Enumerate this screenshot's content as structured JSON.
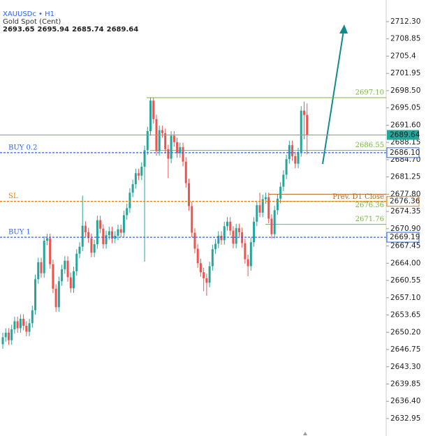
{
  "chart_data": {
    "type": "candlestick",
    "title": "XAUUSDc • H1",
    "subtitle": "Gold Spot (Cent)",
    "ohlc_values": [
      2693.65,
      2695.94,
      2685.74,
      2689.64
    ],
    "up_color": "#26a69a",
    "down_color": "#ef5350",
    "ylim": [
      2629.46,
      2716.62
    ],
    "yticks": [
      {
        "value": 2712.3,
        "label": "2712.30"
      },
      2708.85,
      2705.4,
      2701.95,
      {
        "value": 2698.5,
        "label": "2698.50"
      },
      2695.05,
      {
        "value": 2691.6,
        "label": "2691.60"
      },
      2688.15,
      {
        "value": 2684.7,
        "label": "2684.70"
      },
      2681.25,
      {
        "value": 2677.8,
        "label": "2677.80"
      },
      2674.35,
      {
        "value": 2670.9,
        "label": "2670.90"
      },
      2667.45,
      {
        "value": 2664,
        "label": "2664.00"
      },
      2660.55,
      {
        "value": 2657.1,
        "label": "2657.10"
      },
      2653.65,
      {
        "value": 2650.2,
        "label": "2650.20"
      },
      2646.75,
      {
        "value": 2643.3,
        "label": "2643.30"
      },
      2639.85,
      {
        "value": 2636.4,
        "label": "2636.40"
      },
      2632.95
    ],
    "open": [
      2647.8,
      2649.2,
      2650.1,
      2648.6,
      2650.8,
      2652.4,
      2651.0,
      2652.9,
      2651.5,
      2650.3,
      2652.0,
      2654.6,
      2660.8,
      2664.2,
      2662.0,
      2668.5,
      2669.0,
      2663.8,
      2658.9,
      2655.2,
      2660.4,
      2662.8,
      2664.5,
      2661.2,
      2659.0,
      2662.4,
      2665.9,
      2667.3,
      2671.5,
      2670.2,
      2669.0,
      2666.1,
      2667.8,
      2672.6,
      2670.9,
      2667.8,
      2669.6,
      2670.4,
      2668.9,
      2669.5,
      2670.8,
      2670.1,
      2673.6,
      2675.0,
      2678.1,
      2679.8,
      2682.0,
      2681.5,
      2683.3,
      2686.6,
      2690.4,
      2696.5,
      2692.8,
      2686.4,
      2690.6,
      2690.0,
      2686.8,
      2684.9,
      2689.5,
      2688.2,
      2686.0,
      2687.2,
      2684.3,
      2680.0,
      2675.4,
      2670.1,
      2666.9,
      2664.0,
      2662.2,
      2661.0,
      2660.1,
      2663.4,
      2666.8,
      2667.9,
      2669.5,
      2668.6,
      2671.4,
      2672.3,
      2670.5,
      2667.9,
      2671.0,
      2670.2,
      2668.0,
      2664.8,
      2663.4,
      2668.2,
      2672.3,
      2675.6,
      2674.1,
      2676.8,
      2677.2,
      2672.9,
      2669.8,
      2674.6,
      2676.9,
      2679.3,
      2681.7,
      2684.8,
      2687.6,
      2685.4,
      2683.9,
      2686.2,
      2694.5,
      2693.65
    ],
    "high": [
      2650.1,
      2651.0,
      2651.0,
      2651.7,
      2653.3,
      2653.3,
      2653.8,
      2653.8,
      2652.4,
      2652.9,
      2655.5,
      2661.7,
      2665.1,
      2665.1,
      2669.4,
      2669.9,
      2669.9,
      2664.7,
      2659.8,
      2661.3,
      2663.7,
      2665.4,
      2665.4,
      2662.1,
      2663.3,
      2666.8,
      2668.2,
      2677.5,
      2672.4,
      2671.1,
      2669.9,
      2668.7,
      2673.5,
      2673.5,
      2671.8,
      2670.5,
      2671.3,
      2671.3,
      2670.4,
      2671.7,
      2671.7,
      2674.5,
      2675.9,
      2679.0,
      2680.7,
      2682.9,
      2682.9,
      2684.2,
      2687.5,
      2691.3,
      2697.1,
      2697.1,
      2693.7,
      2691.5,
      2691.5,
      2690.9,
      2687.7,
      2690.4,
      2690.4,
      2689.1,
      2688.1,
      2688.1,
      2685.2,
      2680.9,
      2676.3,
      2671.0,
      2667.8,
      2664.9,
      2663.1,
      2661.9,
      2664.3,
      2667.7,
      2668.8,
      2670.4,
      2670.4,
      2672.3,
      2673.2,
      2673.2,
      2671.4,
      2671.9,
      2671.9,
      2671.1,
      2668.9,
      2665.7,
      2669.1,
      2673.2,
      2676.5,
      2678.1,
      2677.7,
      2678.1,
      2678.1,
      2673.8,
      2675.5,
      2677.8,
      2680.2,
      2682.6,
      2685.7,
      2688.5,
      2688.5,
      2686.3,
      2687.1,
      2695.4,
      2696.3,
      2695.94
    ],
    "low": [
      2646.9,
      2648.3,
      2647.7,
      2647.7,
      2649.9,
      2650.1,
      2650.1,
      2650.6,
      2649.4,
      2649.4,
      2651.1,
      2653.7,
      2659.9,
      2661.1,
      2661.1,
      2667.6,
      2662.9,
      2658.0,
      2654.3,
      2654.3,
      2659.5,
      2661.9,
      2660.3,
      2658.1,
      2658.1,
      2661.5,
      2665.0,
      2666.4,
      2669.3,
      2668.1,
      2665.2,
      2665.2,
      2666.9,
      2670.0,
      2666.9,
      2666.9,
      2668.7,
      2668.0,
      2668.0,
      2668.6,
      2669.2,
      2669.2,
      2672.7,
      2674.1,
      2677.2,
      2678.9,
      2680.6,
      2680.6,
      2664.3,
      2685.7,
      2689.5,
      2691.9,
      2685.5,
      2685.5,
      2689.1,
      2685.9,
      2681.0,
      2684.0,
      2687.3,
      2685.1,
      2685.1,
      2683.4,
      2679.1,
      2674.5,
      2669.2,
      2666.0,
      2663.1,
      2661.3,
      2658.4,
      2657.5,
      2659.2,
      2662.5,
      2665.9,
      2667.0,
      2667.7,
      2667.7,
      2670.5,
      2669.6,
      2667.0,
      2667.0,
      2669.3,
      2667.1,
      2663.9,
      2661.4,
      2662.5,
      2667.3,
      2671.4,
      2673.2,
      2673.2,
      2675.9,
      2672.0,
      2668.9,
      2668.9,
      2673.7,
      2676.0,
      2678.4,
      2680.8,
      2683.9,
      2684.5,
      2683.0,
      2683.0,
      2685.3,
      2688.8,
      2685.74
    ],
    "close": [
      2649.2,
      2650.1,
      2648.6,
      2650.8,
      2652.4,
      2651.0,
      2652.9,
      2651.5,
      2650.3,
      2652.0,
      2654.6,
      2660.8,
      2664.2,
      2662.0,
      2668.5,
      2669.0,
      2663.8,
      2658.9,
      2655.2,
      2660.4,
      2662.8,
      2664.5,
      2661.2,
      2659.0,
      2662.4,
      2665.9,
      2667.3,
      2671.5,
      2670.2,
      2669.0,
      2666.1,
      2667.8,
      2672.6,
      2670.9,
      2667.8,
      2669.6,
      2670.4,
      2668.9,
      2669.5,
      2670.8,
      2670.1,
      2673.6,
      2675.0,
      2678.1,
      2679.8,
      2682.0,
      2681.5,
      2683.3,
      2686.6,
      2690.4,
      2696.5,
      2692.8,
      2686.4,
      2690.6,
      2690.0,
      2686.8,
      2684.9,
      2689.5,
      2688.2,
      2686.0,
      2687.2,
      2684.3,
      2680.0,
      2675.4,
      2670.1,
      2666.9,
      2664.0,
      2662.2,
      2661.0,
      2660.1,
      2663.4,
      2666.8,
      2667.9,
      2669.5,
      2668.6,
      2671.4,
      2672.3,
      2670.5,
      2667.9,
      2671.0,
      2670.2,
      2668.0,
      2664.8,
      2663.4,
      2668.2,
      2672.3,
      2675.6,
      2674.1,
      2676.8,
      2677.2,
      2672.9,
      2669.8,
      2674.6,
      2676.9,
      2679.3,
      2681.7,
      2684.8,
      2687.6,
      2685.4,
      2683.9,
      2686.2,
      2694.5,
      2693.65,
      2689.64
    ],
    "order_lines": [
      {
        "name": "BUY 0.2",
        "price": {
          "value": 2686.1,
          "label": "2686.10"
        },
        "color": "#2962ff"
      },
      {
        "name": "SL",
        "price": 2676.36,
        "color": "#f57c00"
      },
      {
        "name": "BUY 1",
        "price": 2669.19,
        "color": "#2962ff"
      }
    ],
    "levels": [
      {
        "price": {
          "value": 2697.1,
          "label": "2697.10"
        },
        "color": "#7cb342"
      },
      {
        "price": 2686.55,
        "color": "#7cb342"
      },
      {
        "name": "Prev. D1 Close",
        "price": 2677.8,
        "color": "#b5651d"
      },
      {
        "price": 2676.36,
        "color": "#7cb342"
      },
      {
        "price": 2671.76,
        "color": "#7cb342"
      }
    ],
    "last_price": 2689.64
  }
}
